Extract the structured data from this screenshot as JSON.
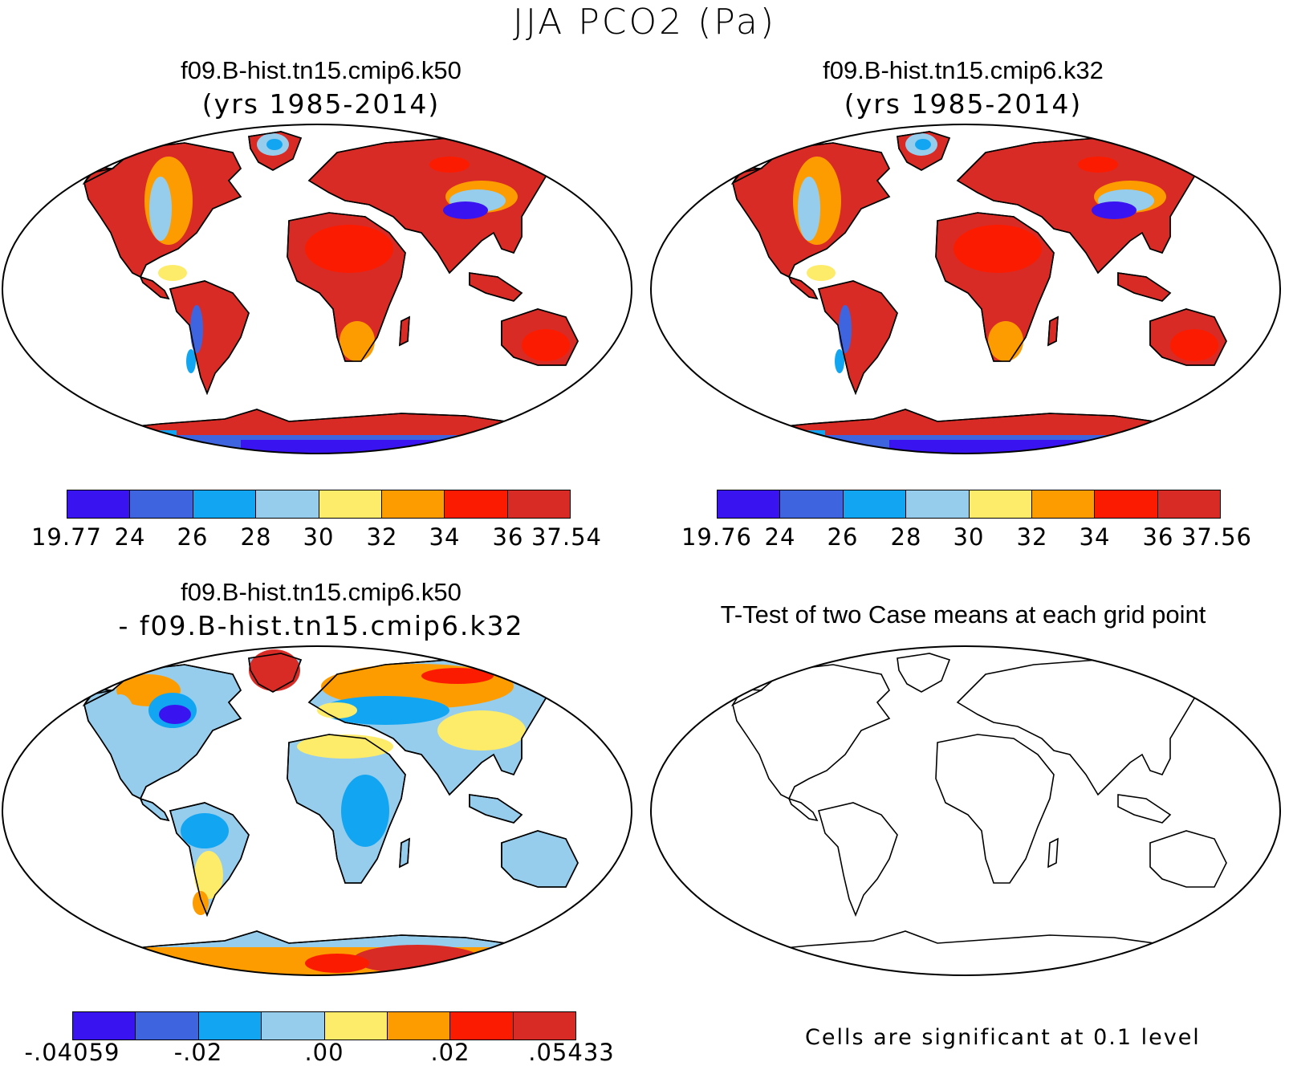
{
  "title": "JJA PCO2 (Pa)",
  "colors": {
    "levels8": [
      "#3a14f0",
      "#3f64e0",
      "#12a6f2",
      "#96cdec",
      "#fdeb6a",
      "#fd9c00",
      "#fb1c00",
      "#d92b26"
    ]
  },
  "panels": [
    {
      "id": "k50",
      "title": "f09.B-hist.tn15.cmip6.k50",
      "subtitle": "(yrs 1985-2014)",
      "colorbar_labels": [
        "19.77",
        "24",
        "26",
        "28",
        "30",
        "32",
        "34",
        "36",
        "37.54"
      ]
    },
    {
      "id": "k32",
      "title": "f09.B-hist.tn15.cmip6.k32",
      "subtitle": "(yrs 1985-2014)",
      "colorbar_labels": [
        "19.76",
        "24",
        "26",
        "28",
        "30",
        "32",
        "34",
        "36",
        "37.56"
      ]
    },
    {
      "id": "diff",
      "title": "f09.B-hist.tn15.cmip6.k50",
      "subtitle": "- f09.B-hist.tn15.cmip6.k32",
      "colorbar_labels": [
        "-.04059",
        "-.02",
        ".00",
        ".02",
        ".05433"
      ]
    },
    {
      "id": "ttest",
      "title": "T-Test of two Case means at each grid point",
      "note": "Cells are significant at 0.1 level"
    }
  ]
}
